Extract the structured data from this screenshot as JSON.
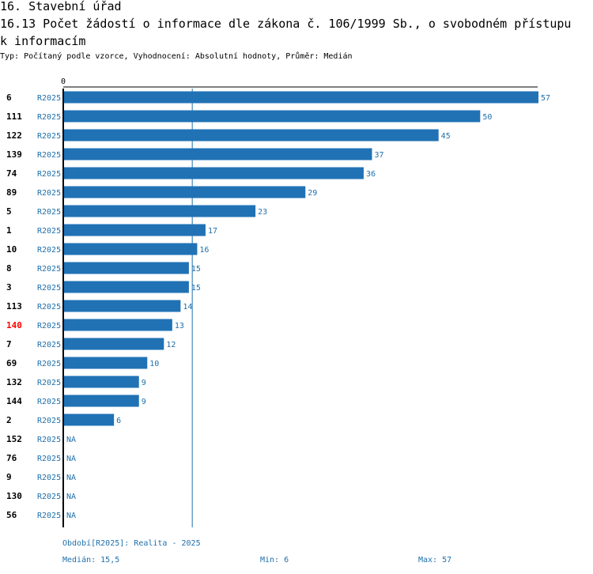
{
  "header": {
    "section": "16. Stavební úřad",
    "title_line1": "16.13 Počet žádostí o informace dle zákona č. 106/1999 Sb., o svobodném přístupu",
    "title_line2": "k informacím",
    "subtitle": "Typ: Počítaný podle vzorce, Vyhodnocení: Absolutní hodnoty, Průměr: Medián"
  },
  "colors": {
    "bar": "#2072b5",
    "value_text": "#1f6faa",
    "highlight": "#ff0000",
    "axis": "#000000",
    "median_line": "#1f6faa"
  },
  "chart_data": {
    "type": "bar",
    "orientation": "horizontal",
    "axis_zero_label": "0",
    "xlim": [
      0,
      57
    ],
    "median": 15.5,
    "highlighted_category": "140",
    "series_label": "R2025",
    "categories": [
      "6",
      "111",
      "122",
      "139",
      "74",
      "89",
      "5",
      "1",
      "10",
      "8",
      "3",
      "113",
      "140",
      "7",
      "69",
      "132",
      "144",
      "2",
      "152",
      "76",
      "9",
      "130",
      "56"
    ],
    "values": [
      57,
      50,
      45,
      37,
      36,
      29,
      23,
      17,
      16,
      15,
      15,
      14,
      13,
      12,
      10,
      9,
      9,
      6,
      null,
      null,
      null,
      null,
      null
    ],
    "value_labels": [
      "57",
      "50",
      "45",
      "37",
      "36",
      "29",
      "23",
      "17",
      "16",
      "15",
      "15",
      "14",
      "13",
      "12",
      "10",
      "9",
      "9",
      "6",
      "NA",
      "NA",
      "NA",
      "NA",
      "NA"
    ]
  },
  "footer": {
    "period": "Období[R2025]: Realita - 2025",
    "median": "Medián: 15,5",
    "min": "Min: 6",
    "max": "Max: 57"
  }
}
